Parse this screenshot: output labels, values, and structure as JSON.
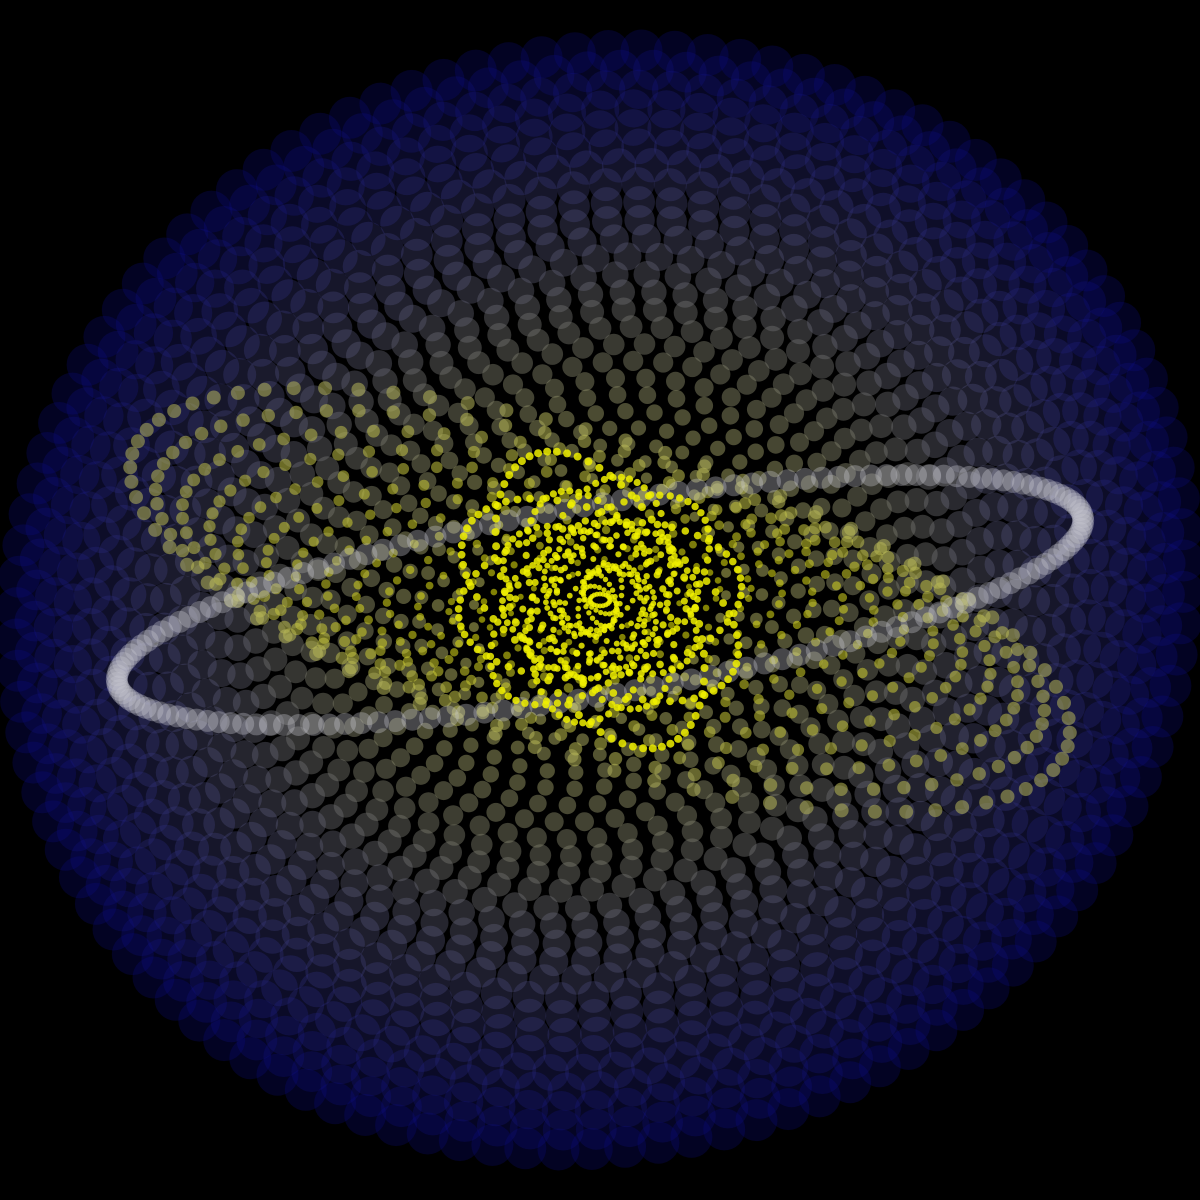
{
  "scene": {
    "background_color": "#000000",
    "outer_color": "#0a0a8c",
    "mid_color": "#6e6e78",
    "inner_color": "#b4b45a",
    "core_color": "#f0f000",
    "ring_color": "#c8c8d2",
    "description_kind": "dotted particle galaxy swirl"
  }
}
